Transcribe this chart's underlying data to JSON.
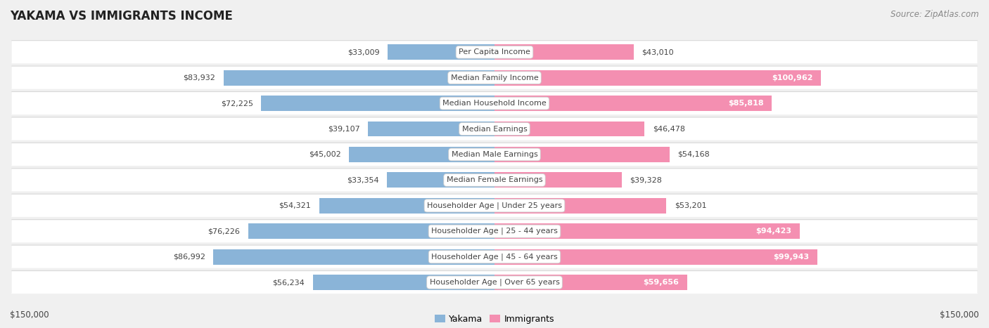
{
  "title": "YAKAMA VS IMMIGRANTS INCOME",
  "source": "Source: ZipAtlas.com",
  "categories": [
    "Per Capita Income",
    "Median Family Income",
    "Median Household Income",
    "Median Earnings",
    "Median Male Earnings",
    "Median Female Earnings",
    "Householder Age | Under 25 years",
    "Householder Age | 25 - 44 years",
    "Householder Age | 45 - 64 years",
    "Householder Age | Over 65 years"
  ],
  "yakama_values": [
    33009,
    83932,
    72225,
    39107,
    45002,
    33354,
    54321,
    76226,
    86992,
    56234
  ],
  "immigrant_values": [
    43010,
    100962,
    85818,
    46478,
    54168,
    39328,
    53201,
    94423,
    99943,
    59656
  ],
  "yakama_color": "#8ab4d8",
  "immigrant_color": "#f48fb1",
  "immigrant_color_strong": "#f06292",
  "background_color": "#f0f0f0",
  "row_bg_color": "#ffffff",
  "max_value": 150000,
  "label_color_dark": "#444444",
  "label_color_white": "#ffffff",
  "title_fontsize": 12,
  "source_fontsize": 8.5,
  "bar_label_fontsize": 8,
  "category_fontsize": 8,
  "axis_label_fontsize": 8.5,
  "row_shadow_color": "#d8d8d8",
  "legend_label_fontsize": 9
}
